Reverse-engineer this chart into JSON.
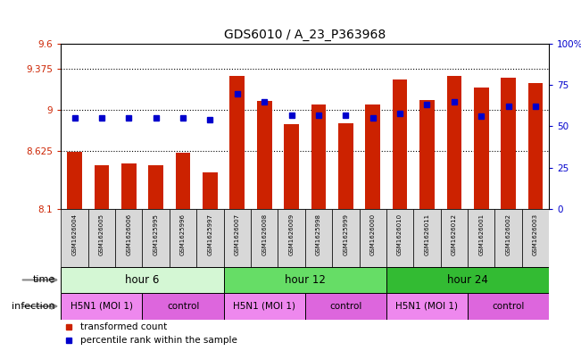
{
  "title": "GDS6010 / A_23_P363968",
  "samples": [
    "GSM1626004",
    "GSM1626005",
    "GSM1626006",
    "GSM1625995",
    "GSM1625996",
    "GSM1625997",
    "GSM1626007",
    "GSM1626008",
    "GSM1626009",
    "GSM1625998",
    "GSM1625999",
    "GSM1626000",
    "GSM1626010",
    "GSM1626011",
    "GSM1626012",
    "GSM1626001",
    "GSM1626002",
    "GSM1626003"
  ],
  "red_values": [
    8.62,
    8.5,
    8.51,
    8.5,
    8.61,
    8.43,
    9.31,
    9.08,
    8.87,
    9.05,
    8.88,
    9.05,
    9.28,
    9.09,
    9.31,
    9.2,
    9.29,
    9.24
  ],
  "blue_pct": [
    55,
    55,
    55,
    55,
    55,
    54,
    70,
    65,
    57,
    57,
    57,
    55,
    58,
    63,
    65,
    56,
    62,
    62
  ],
  "ymin": 8.1,
  "ymax": 9.6,
  "yticks_red": [
    8.1,
    8.625,
    9.0,
    9.375,
    9.6
  ],
  "ytick_labels_red": [
    "8.1",
    "8.625",
    "9",
    "9.375",
    "9.6"
  ],
  "yticks_blue_pct": [
    0,
    25,
    50,
    75,
    100
  ],
  "ytick_labels_blue": [
    "0",
    "25",
    "50",
    "75",
    "100%"
  ],
  "time_groups": [
    {
      "label": "hour 6",
      "start": 0,
      "end": 6,
      "color": "#d4f7d4"
    },
    {
      "label": "hour 12",
      "start": 6,
      "end": 12,
      "color": "#66dd66"
    },
    {
      "label": "hour 24",
      "start": 12,
      "end": 18,
      "color": "#33bb33"
    }
  ],
  "infection_groups": [
    {
      "label": "H5N1 (MOI 1)",
      "start": 0,
      "end": 3,
      "color": "#ee88ee"
    },
    {
      "label": "control",
      "start": 3,
      "end": 6,
      "color": "#dd66dd"
    },
    {
      "label": "H5N1 (MOI 1)",
      "start": 6,
      "end": 9,
      "color": "#ee88ee"
    },
    {
      "label": "control",
      "start": 9,
      "end": 12,
      "color": "#dd66dd"
    },
    {
      "label": "H5N1 (MOI 1)",
      "start": 12,
      "end": 15,
      "color": "#ee88ee"
    },
    {
      "label": "control",
      "start": 15,
      "end": 18,
      "color": "#dd66dd"
    }
  ],
  "bar_color": "#cc2200",
  "dot_color": "#0000cc",
  "bar_width": 0.55,
  "sample_bg_color": "#d8d8d8",
  "dotted_lines": [
    8.625,
    9.0,
    9.375
  ],
  "legend_items": [
    "transformed count",
    "percentile rank within the sample"
  ]
}
